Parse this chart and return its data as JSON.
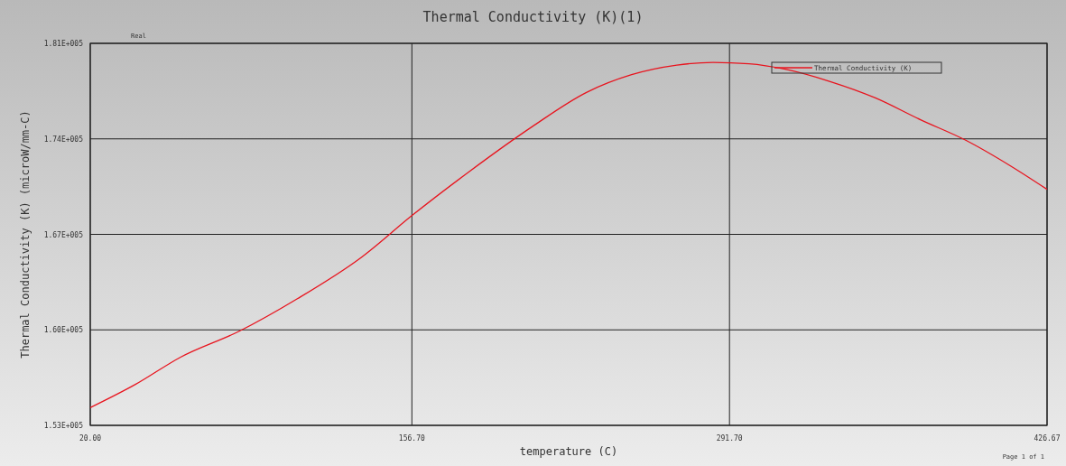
{
  "chart_data": {
    "type": "line",
    "title": "Thermal Conductivity (K)(1)",
    "xlabel": "temperature (C)",
    "ylabel": "Thermal Conductivity (K) (microW/mm-C)",
    "annotations": [
      "Real",
      "Page 1 of 1"
    ],
    "x": [
      20,
      39.2,
      58.4,
      83.3,
      108.2,
      135.1,
      156.9,
      181.1,
      207.9,
      230.9,
      250.1,
      269.3,
      284.7,
      300.0,
      315.4,
      334.5,
      353.7,
      372.9,
      392.1,
      411.3,
      426.67
    ],
    "series": [
      {
        "name": "Thermal Conductivity (K)",
        "color": "#e8141e",
        "values": [
          154300,
          156000,
          158000,
          159900,
          162300,
          165300,
          168400,
          171600,
          174900,
          177400,
          178700,
          179400,
          179600,
          179500,
          179100,
          178200,
          177000,
          175400,
          173900,
          172000,
          170300
        ]
      }
    ],
    "xlim": [
      20,
      426.67
    ],
    "xticks": [
      {
        "value": 20,
        "label": "20.00"
      },
      {
        "value": 156.7,
        "label": "156.70"
      },
      {
        "value": 291.7,
        "label": "291.70"
      },
      {
        "value": 426.67,
        "label": "426.67"
      }
    ],
    "ylim": [
      153000,
      181000
    ],
    "yticks": [
      {
        "value": 153000,
        "label": "1.53E+005"
      },
      {
        "value": 160000,
        "label": "1.60E+005"
      },
      {
        "value": 167000,
        "label": "1.67E+005"
      },
      {
        "value": 174000,
        "label": "1.74E+005"
      },
      {
        "value": 181000,
        "label": "1.81E+005"
      }
    ],
    "grid": true,
    "legend": "top right",
    "marker": "none",
    "line_style": "solid"
  }
}
